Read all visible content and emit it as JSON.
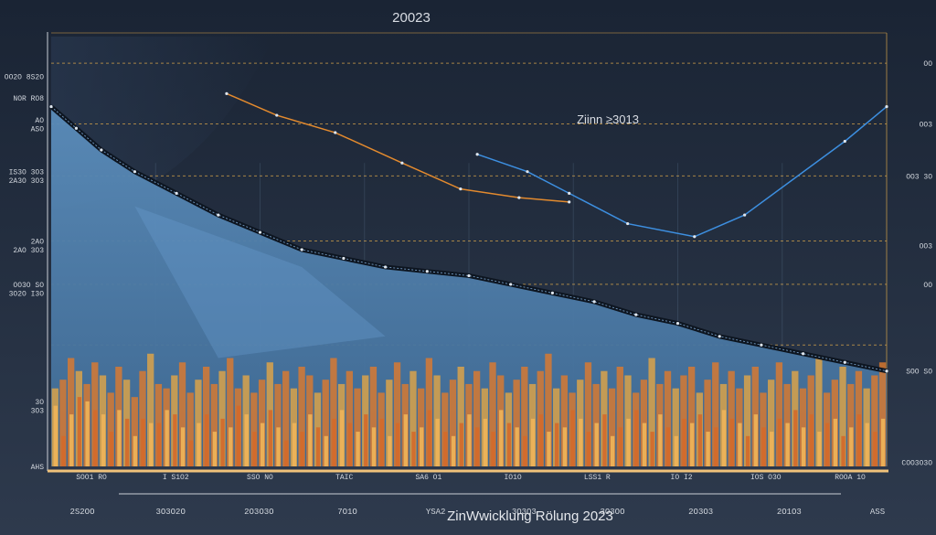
{
  "chart_data": {
    "type": "area",
    "title": "20023",
    "subtitle": "",
    "annotation": "Ziinn ≥3013",
    "footer_title": "ZinWwicklung Rölung 2023",
    "xlabel": "",
    "ylabel": "",
    "x_ticks": [
      "2S2OO",
      "3O3O2O",
      "2O3O3O",
      "7O1O",
      "YSA2",
      "3O3O3",
      "3O3OO",
      "2O3O3",
      "2O1O3",
      "ASS"
    ],
    "x_minor_ticks": [
      "SOO1 RO",
      "I S1O2",
      "SSO NO",
      "TAIC",
      "SA6 O1",
      "IO1O",
      "LSS1 R",
      "IO I2",
      "IOS O3O",
      "ROOA 1O"
    ],
    "left_ticks": [
      {
        "label": "OO2O 8S2O",
        "y": 90
      },
      {
        "label": "NOR RO8",
        "y": 85
      },
      {
        "label": "AO",
        "y": 80
      },
      {
        "label": "ASO",
        "y": 78
      },
      {
        "label": "IS3O 3O3",
        "y": 68
      },
      {
        "label": "2A3O 3O3",
        "y": 66
      },
      {
        "label": "2AO",
        "y": 52
      },
      {
        "label": "2AO 3O3",
        "y": 50
      },
      {
        "label": "OO3O SO",
        "y": 42
      },
      {
        "label": "3O2O I3O",
        "y": 40
      },
      {
        "label": "3O",
        "y": 15
      },
      {
        "label": "3O3",
        "y": 13
      },
      {
        "label": "AHS",
        "y": 0
      }
    ],
    "right_ticks": [
      {
        "label": "OO",
        "y": 93
      },
      {
        "label": "OO3",
        "y": 79
      },
      {
        "label": "OO3 3O",
        "y": 67
      },
      {
        "label": "OO3",
        "y": 51
      },
      {
        "label": "OO",
        "y": 42
      },
      {
        "label": "SOO SO",
        "y": 22
      },
      {
        "label": "COO3O3O",
        "y": 1
      }
    ],
    "ylim": [
      0,
      100
    ],
    "grid": true,
    "reference_lines": [
      93,
      79,
      67,
      52,
      42,
      28
    ],
    "colors": {
      "background": "#1b2535",
      "area_fill": "#4e7fab",
      "area_highlight": "#6a9ed0",
      "line_main": "#0d1520",
      "line_orange": "#e38a2e",
      "line_blue": "#3d8fe0",
      "bars_orange": "#e07a2c",
      "bars_gold": "#e3a645",
      "grid": "#d4a24a",
      "axis_base": "#f0c27a"
    },
    "series": [
      {
        "x": [
          0,
          3,
          6,
          10,
          15,
          20,
          25,
          30,
          35,
          40,
          45,
          50,
          55,
          60,
          65,
          70,
          75,
          80,
          85,
          90,
          95,
          100
        ],
        "values": [
          83,
          78,
          73,
          68,
          63,
          58,
          54,
          50,
          48,
          46,
          45,
          44,
          42,
          40,
          38,
          35,
          33,
          30,
          28,
          26,
          24,
          22
        ]
      },
      {
        "x": [
          21,
          27,
          34,
          42,
          49,
          56,
          62
        ],
        "values": [
          86,
          81,
          77,
          70,
          64,
          62,
          61
        ]
      },
      {
        "x": [
          51,
          57,
          62,
          69,
          77,
          83,
          95,
          100
        ],
        "values": [
          72,
          68,
          63,
          56,
          53,
          58,
          75,
          83
        ]
      }
    ],
    "bars_lower": [
      14,
      7,
      12,
      16,
      15,
      13,
      12,
      8,
      13,
      11,
      7,
      11,
      10,
      10,
      13,
      12,
      9,
      6,
      10,
      12,
      8,
      11,
      9,
      14,
      12,
      8,
      10,
      13,
      9,
      6,
      10,
      8,
      12,
      9,
      7,
      11,
      13,
      10,
      8,
      12,
      9,
      11,
      7,
      10,
      12,
      8,
      9,
      13,
      11,
      8,
      7,
      10,
      12,
      9,
      11,
      8,
      13,
      10,
      9,
      7,
      11,
      12,
      8,
      10,
      9,
      13,
      11,
      8,
      10,
      12,
      7,
      9,
      11,
      13,
      10,
      8,
      12,
      9,
      7,
      11,
      10,
      12,
      8,
      9,
      13,
      11,
      10,
      7,
      12,
      9,
      8,
      11,
      10,
      13,
      9,
      12,
      8,
      10,
      11,
      7,
      9,
      12,
      10,
      8,
      11
    ],
    "bars_upper": [
      18,
      20,
      25,
      22,
      19,
      24,
      21,
      17,
      23,
      20,
      16,
      22,
      26,
      19,
      18,
      21,
      24,
      17,
      20,
      23,
      19,
      22,
      25,
      18,
      21,
      17,
      20,
      24,
      19,
      22,
      18,
      23,
      21,
      17,
      20,
      25,
      19,
      22,
      18,
      21,
      23,
      17,
      20,
      24,
      19,
      22,
      18,
      25,
      21,
      17,
      20,
      23,
      19,
      22,
      18,
      24,
      21,
      17,
      20,
      23,
      19,
      22,
      26,
      18,
      21,
      17,
      20,
      24,
      19,
      22,
      18,
      23,
      21,
      17,
      20,
      25,
      19,
      22,
      18,
      21,
      23,
      17,
      20,
      24,
      19,
      22,
      18,
      21,
      23,
      17,
      20,
      24,
      19,
      22,
      18,
      21,
      25,
      17,
      20,
      23,
      19,
      22,
      18,
      21,
      24
    ]
  }
}
